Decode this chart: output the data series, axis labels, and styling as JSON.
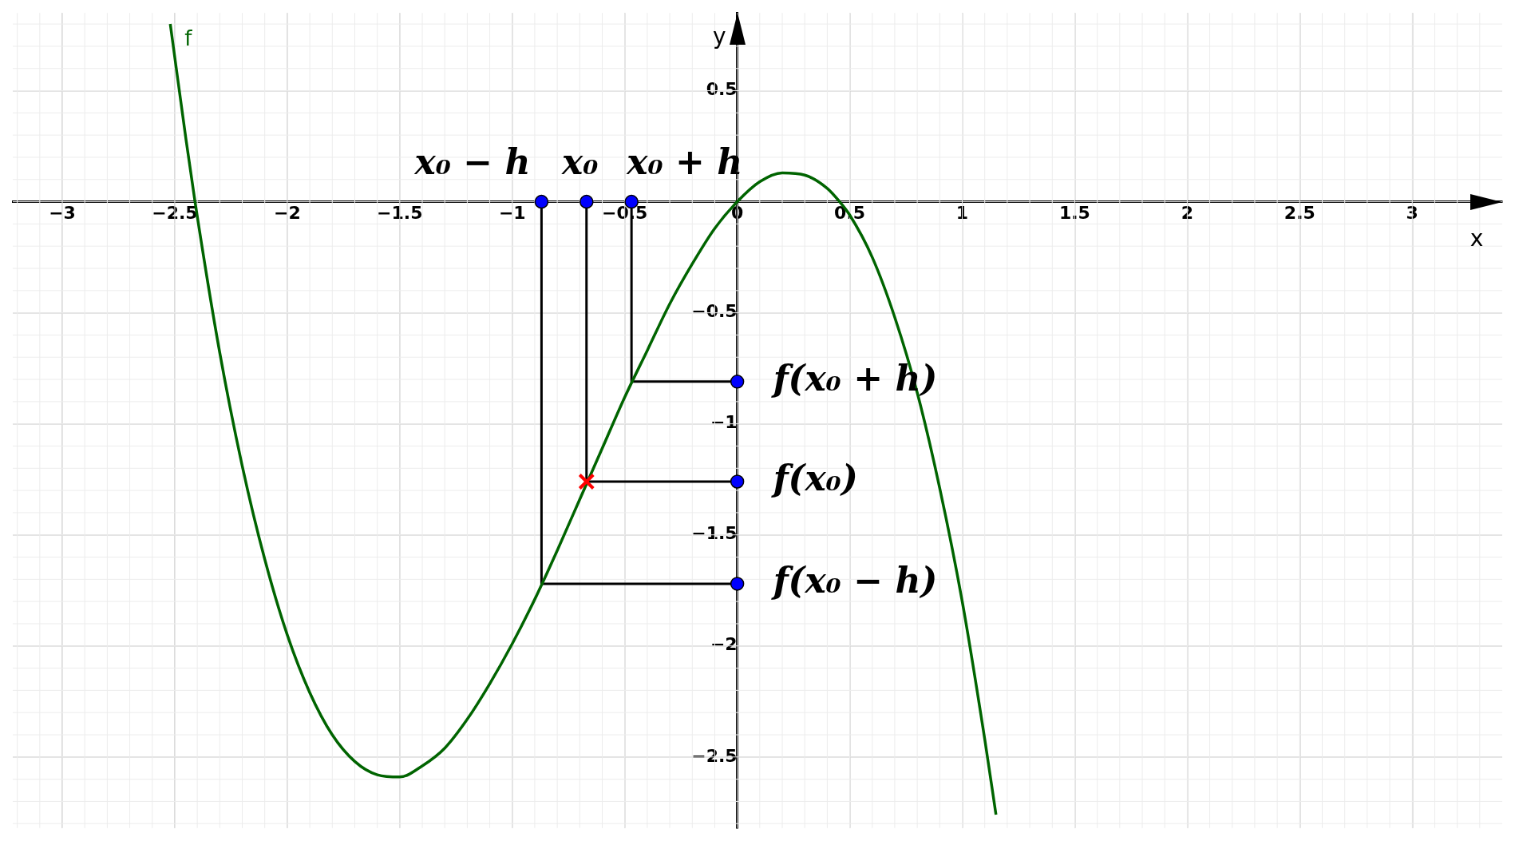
{
  "chart_data": {
    "type": "line",
    "xlabel": "x",
    "ylabel": "y",
    "xlim": [
      -3.22,
      3.4
    ],
    "ylim": [
      -2.82,
      0.85
    ],
    "xticks": [
      {
        "value": -3,
        "label": "−3"
      },
      {
        "value": -2.5,
        "label": "−2.5"
      },
      {
        "value": -2,
        "label": "−2"
      },
      {
        "value": -1.5,
        "label": "−1.5"
      },
      {
        "value": -1,
        "label": "−1"
      },
      {
        "value": -0.5,
        "label": "−0.5"
      },
      0,
      0.5,
      1,
      1.5,
      2,
      2.5,
      3
    ],
    "yticks": [
      {
        "value": -2.5,
        "label": "−2.5"
      },
      {
        "value": -2,
        "label": "−2"
      },
      {
        "value": -1.5,
        "label": "−1.5"
      },
      {
        "value": -1,
        "label": "−1"
      },
      {
        "value": -0.5,
        "label": "−0.5"
      },
      {
        "value": 0,
        "label": null
      },
      0.5
    ],
    "grid": true,
    "legend": false,
    "series": [
      {
        "name": "f",
        "color": "#006400",
        "marker": "none",
        "x": [
          -2.52,
          -2.45,
          -2.41,
          -2.3,
          -2.2,
          -2.1,
          -2.0,
          -1.9,
          -1.8,
          -1.7,
          -1.6,
          -1.5,
          -1.4,
          -1.3,
          -1.2,
          -1.1,
          -1.0,
          -0.9,
          -0.8,
          -0.7,
          -0.6,
          -0.5,
          -0.4,
          -0.3,
          -0.2,
          -0.1,
          0,
          0.1,
          0.2,
          0.3,
          0.4,
          0.455,
          0.5,
          0.6,
          0.7,
          0.8,
          0.9,
          1.0,
          1.1,
          1.15
        ],
        "values": [
          0.8,
          0.28,
          0,
          -0.68,
          -1.19,
          -1.61,
          -1.95,
          -2.21,
          -2.4,
          -2.52,
          -2.58,
          -2.59,
          -2.54,
          -2.46,
          -2.33,
          -2.17,
          -1.99,
          -1.79,
          -1.57,
          -1.34,
          -1.11,
          -0.88,
          -0.67,
          -0.46,
          -0.28,
          -0.12,
          0,
          0.09,
          0.13,
          0.12,
          0.06,
          0,
          -0.06,
          -0.25,
          -0.52,
          -0.86,
          -1.29,
          -1.8,
          -2.42,
          -2.76
        ]
      },
      {
        "color": "#000000",
        "marker": "none",
        "x": [
          -0.87,
          -0.87,
          0
        ],
        "values": [
          0,
          -1.72,
          -1.72
        ]
      },
      {
        "color": "#000000",
        "marker": "none",
        "x": [
          -0.67,
          -0.67,
          0
        ],
        "values": [
          0,
          -1.26,
          -1.26
        ]
      },
      {
        "color": "#000000",
        "marker": "none",
        "x": [
          -0.47,
          -0.47,
          0
        ],
        "values": [
          0,
          -0.81,
          -0.81
        ]
      },
      {
        "type": "scatter",
        "color": "#0000ff",
        "marker": "circle",
        "x": [
          -0.87,
          -0.67,
          -0.47,
          0,
          0,
          0
        ],
        "values": [
          0,
          0,
          0,
          -0.81,
          -1.26,
          -1.72
        ]
      },
      {
        "type": "scatter",
        "color": "#ff0000",
        "marker": "cross",
        "x": [
          -0.67
        ],
        "values": [
          -1.26
        ]
      }
    ],
    "annotations": [
      {
        "text": "x₀ − h",
        "x": -0.87,
        "y": 0
      },
      {
        "text": "x₀",
        "x": -0.67,
        "y": 0
      },
      {
        "text": "x₀ + h",
        "x": -0.47,
        "y": 0
      },
      {
        "text": "f(x₀ + h)",
        "x": 0,
        "y": -0.81
      },
      {
        "text": "f(x₀)",
        "x": 0,
        "y": -1.26
      },
      {
        "text": "f(x₀ − h)",
        "x": 0,
        "y": -1.72
      }
    ]
  }
}
